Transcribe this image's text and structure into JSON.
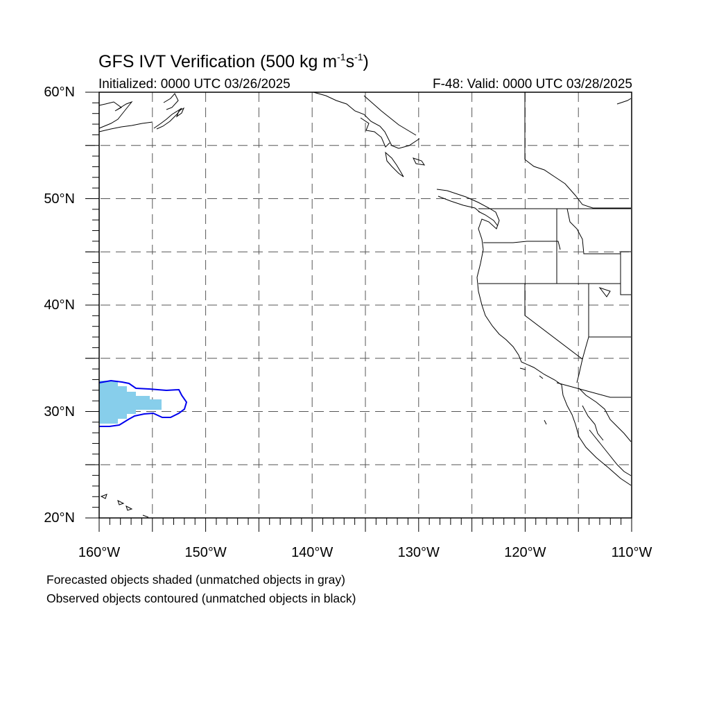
{
  "title": {
    "main": "GFS IVT Verification (500 kg m",
    "sup1": "-1",
    "mid": "s",
    "sup2": "-1",
    "end": ")"
  },
  "init_text": "Initialized: 0000 UTC 03/26/2025",
  "valid_text": "F-48: Valid: 0000 UTC 03/28/2025",
  "map": {
    "lon_range": [
      -160,
      -110
    ],
    "lat_range": [
      20,
      60
    ],
    "lat_labels": [
      "60°N",
      "50°N",
      "40°N",
      "30°N",
      "20°N"
    ],
    "lon_labels": [
      "160°W",
      "150°W",
      "140°W",
      "130°W",
      "120°W",
      "110°W"
    ],
    "grid": "dashed every 5°",
    "forecast_color": "#87ceeb",
    "observed_color": "#0000ee"
  },
  "notes": {
    "line1": "Forecasted objects shaded (unmatched objects in gray)",
    "line2": "Observed objects contoured (unmatched objects in black)"
  }
}
